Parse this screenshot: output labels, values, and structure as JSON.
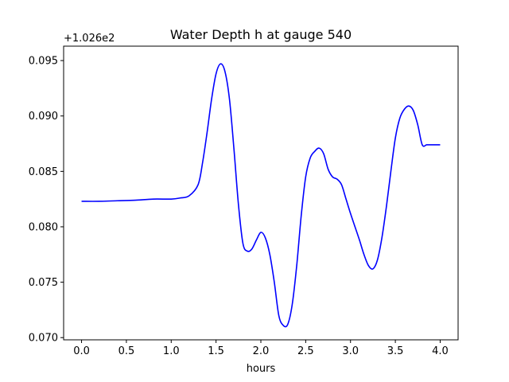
{
  "chart_data": {
    "type": "line",
    "title": "Water Depth h at gauge 540",
    "xlabel": "hours",
    "ylabel": "",
    "y_offset_label": "+1.026e2",
    "xlim": [
      -0.2,
      4.2
    ],
    "ylim": [
      0.0698,
      0.0963
    ],
    "x_ticks": [
      0.0,
      0.5,
      1.0,
      1.5,
      2.0,
      2.5,
      3.0,
      3.5,
      4.0
    ],
    "x_tick_labels": [
      "0.0",
      "0.5",
      "1.0",
      "1.5",
      "2.0",
      "2.5",
      "3.0",
      "3.5",
      "4.0"
    ],
    "y_ticks": [
      0.07,
      0.075,
      0.08,
      0.085,
      0.09,
      0.095
    ],
    "y_tick_labels": [
      "0.070",
      "0.075",
      "0.080",
      "0.085",
      "0.090",
      "0.095"
    ],
    "grid": false,
    "series": [
      {
        "color": "#0000ff",
        "x": [
          0.0,
          0.2,
          0.4,
          0.6,
          0.8,
          1.0,
          1.1,
          1.2,
          1.3,
          1.35,
          1.4,
          1.45,
          1.5,
          1.55,
          1.6,
          1.65,
          1.7,
          1.75,
          1.8,
          1.85,
          1.9,
          1.95,
          2.0,
          2.05,
          2.1,
          2.15,
          2.2,
          2.25,
          2.3,
          2.35,
          2.4,
          2.45,
          2.5,
          2.55,
          2.6,
          2.65,
          2.7,
          2.75,
          2.8,
          2.85,
          2.9,
          2.95,
          3.0,
          3.05,
          3.1,
          3.15,
          3.2,
          3.25,
          3.3,
          3.35,
          3.4,
          3.45,
          3.5,
          3.55,
          3.6,
          3.65,
          3.7,
          3.75,
          3.8,
          3.85,
          3.9,
          3.95,
          4.0
        ],
        "y": [
          0.0823,
          0.0823,
          0.08235,
          0.0824,
          0.0825,
          0.0825,
          0.0826,
          0.0828,
          0.0838,
          0.0858,
          0.0885,
          0.0915,
          0.0938,
          0.0947,
          0.094,
          0.0915,
          0.087,
          0.082,
          0.0785,
          0.0778,
          0.078,
          0.0788,
          0.0795,
          0.079,
          0.0775,
          0.075,
          0.072,
          0.0711,
          0.0712,
          0.073,
          0.0765,
          0.081,
          0.0845,
          0.0862,
          0.0868,
          0.0871,
          0.0866,
          0.0852,
          0.0845,
          0.0843,
          0.0838,
          0.0825,
          0.0812,
          0.08,
          0.0788,
          0.0775,
          0.0765,
          0.0762,
          0.077,
          0.079,
          0.0818,
          0.085,
          0.088,
          0.0898,
          0.0906,
          0.0909,
          0.0905,
          0.0892,
          0.0874,
          0.0874,
          0.0874,
          0.0874,
          0.0874
        ]
      }
    ]
  }
}
